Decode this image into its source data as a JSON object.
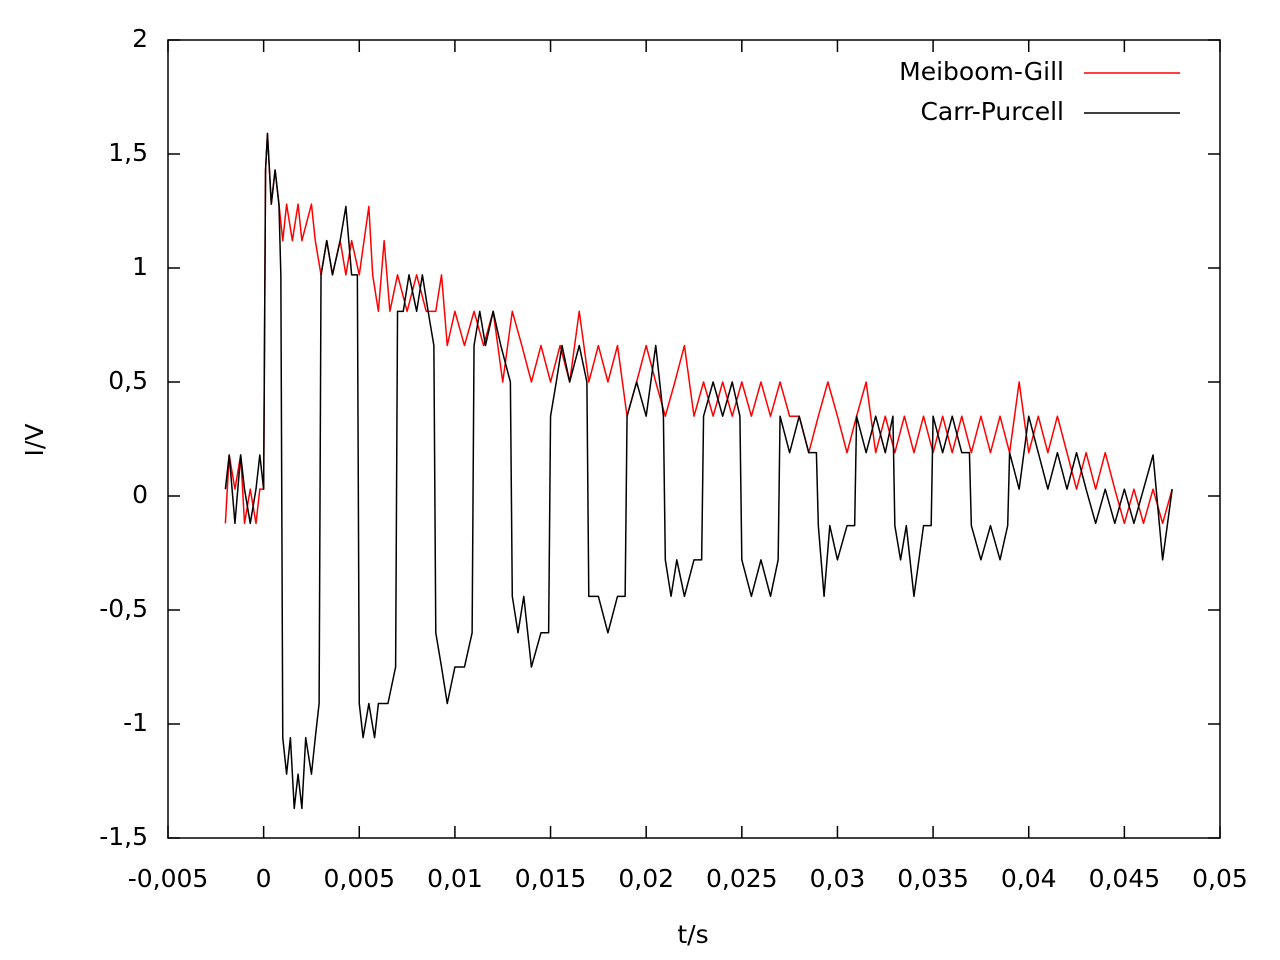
{
  "chart_data": {
    "type": "line",
    "xlabel": "t/s",
    "ylabel": "I/V",
    "xlim": [
      -0.005,
      0.05
    ],
    "xticks": [
      {
        "value": -0.005,
        "label": "-0,005"
      },
      0,
      {
        "value": 0.005,
        "label": "0,005"
      },
      {
        "value": 0.01,
        "label": "0,01"
      },
      {
        "value": 0.015,
        "label": "0,015"
      },
      {
        "value": 0.02,
        "label": "0,02"
      },
      {
        "value": 0.025,
        "label": "0,025"
      },
      {
        "value": 0.03,
        "label": "0,03"
      },
      {
        "value": 0.035,
        "label": "0,035"
      },
      {
        "value": 0.04,
        "label": "0,04"
      },
      {
        "value": 0.045,
        "label": "0,045"
      },
      {
        "value": 0.05,
        "label": "0,05"
      }
    ],
    "ylim": [
      -1.5,
      2
    ],
    "yticks": [
      {
        "value": -1.5,
        "label": "-1,5"
      },
      -1,
      {
        "value": -0.5,
        "label": "-0,5"
      },
      0,
      {
        "value": 0.5,
        "label": "0,5"
      },
      1,
      {
        "value": 1.5,
        "label": "1,5"
      },
      2
    ],
    "grid": false,
    "legend": "top-right",
    "series": [
      {
        "name": "Meiboom-Gill",
        "color": "#ff0000",
        "x": [
          -0.002,
          -0.0018,
          -0.0015,
          -0.0012,
          -0.001,
          -0.0007,
          -0.0004,
          -0.0002,
          0,
          0.0001,
          0.0002,
          0.0004,
          0.0006,
          0.0008,
          0.001,
          0.0012,
          0.0015,
          0.0018,
          0.002,
          0.0025,
          0.0027,
          0.003,
          0.0033,
          0.0036,
          0.004,
          0.0043,
          0.0046,
          0.005,
          0.0055,
          0.0057,
          0.006,
          0.0063,
          0.0066,
          0.007,
          0.0075,
          0.008,
          0.0085,
          0.009,
          0.0093,
          0.0096,
          0.01,
          0.0105,
          0.011,
          0.0115,
          0.012,
          0.0125,
          0.013,
          0.0135,
          0.014,
          0.0145,
          0.015,
          0.0155,
          0.016,
          0.0165,
          0.017,
          0.0175,
          0.018,
          0.0185,
          0.019,
          0.0195,
          0.02,
          0.0205,
          0.021,
          0.0215,
          0.022,
          0.0225,
          0.023,
          0.0235,
          0.024,
          0.0245,
          0.025,
          0.0255,
          0.026,
          0.0265,
          0.027,
          0.0275,
          0.028,
          0.0285,
          0.029,
          0.0295,
          0.03,
          0.0305,
          0.031,
          0.0315,
          0.032,
          0.0325,
          0.033,
          0.0335,
          0.034,
          0.0345,
          0.035,
          0.0355,
          0.036,
          0.0365,
          0.037,
          0.0375,
          0.038,
          0.0385,
          0.039,
          0.0395,
          0.04,
          0.0405,
          0.041,
          0.0415,
          0.042,
          0.0425,
          0.043,
          0.0435,
          0.044,
          0.0445,
          0.045,
          0.0455,
          0.046,
          0.0465,
          0.047,
          0.0475
        ],
        "values": [
          -0.12,
          0.18,
          0.03,
          0.18,
          -0.12,
          0.03,
          -0.12,
          0.03,
          0.03,
          1.43,
          1.59,
          1.28,
          1.43,
          1.28,
          1.12,
          1.28,
          1.12,
          1.28,
          1.12,
          1.28,
          1.12,
          0.97,
          1.12,
          0.97,
          1.12,
          0.97,
          1.12,
          0.97,
          1.27,
          0.97,
          0.81,
          1.12,
          0.81,
          0.97,
          0.81,
          0.97,
          0.81,
          0.81,
          0.97,
          0.66,
          0.81,
          0.66,
          0.81,
          0.66,
          0.81,
          0.5,
          0.81,
          0.66,
          0.5,
          0.66,
          0.5,
          0.66,
          0.5,
          0.81,
          0.5,
          0.66,
          0.5,
          0.66,
          0.35,
          0.5,
          0.66,
          0.5,
          0.35,
          0.5,
          0.66,
          0.35,
          0.5,
          0.35,
          0.5,
          0.35,
          0.5,
          0.35,
          0.5,
          0.35,
          0.5,
          0.35,
          0.35,
          0.19,
          0.35,
          0.5,
          0.35,
          0.19,
          0.35,
          0.5,
          0.19,
          0.35,
          0.19,
          0.35,
          0.19,
          0.35,
          0.19,
          0.35,
          0.19,
          0.35,
          0.19,
          0.35,
          0.19,
          0.35,
          0.19,
          0.5,
          0.19,
          0.35,
          0.19,
          0.35,
          0.19,
          0.03,
          0.19,
          0.03,
          0.19,
          0.03,
          -0.12,
          0.03,
          -0.12,
          0.03,
          -0.12,
          0.03
        ]
      },
      {
        "name": "Carr-Purcell",
        "color": "#000000",
        "x": [
          -0.002,
          -0.0018,
          -0.0015,
          -0.0012,
          -0.001,
          -0.0007,
          -0.0004,
          -0.0002,
          0,
          0.0001,
          0.0002,
          0.0004,
          0.0006,
          0.0008,
          0.0009,
          0.001,
          0.0012,
          0.0014,
          0.0016,
          0.0018,
          0.002,
          0.0022,
          0.0025,
          0.0027,
          0.0029,
          0.003,
          0.0033,
          0.0036,
          0.004,
          0.0043,
          0.0046,
          0.0049,
          0.005,
          0.0052,
          0.0055,
          0.0058,
          0.006,
          0.0065,
          0.0069,
          0.007,
          0.0073,
          0.0076,
          0.008,
          0.0083,
          0.0086,
          0.0089,
          0.009,
          0.0093,
          0.0096,
          0.01,
          0.0105,
          0.0109,
          0.011,
          0.0113,
          0.0116,
          0.012,
          0.0124,
          0.0129,
          0.013,
          0.0133,
          0.0136,
          0.014,
          0.0145,
          0.0149,
          0.015,
          0.0153,
          0.0156,
          0.016,
          0.0165,
          0.0169,
          0.017,
          0.0175,
          0.018,
          0.0185,
          0.0189,
          0.019,
          0.0195,
          0.02,
          0.0205,
          0.0209,
          0.021,
          0.0213,
          0.0216,
          0.022,
          0.0225,
          0.0229,
          0.023,
          0.0235,
          0.024,
          0.0245,
          0.0249,
          0.025,
          0.0255,
          0.026,
          0.0265,
          0.0269,
          0.027,
          0.0275,
          0.028,
          0.0285,
          0.0289,
          0.029,
          0.0293,
          0.0296,
          0.03,
          0.0305,
          0.0309,
          0.031,
          0.0315,
          0.032,
          0.0325,
          0.0329,
          0.033,
          0.0333,
          0.0336,
          0.034,
          0.0345,
          0.0349,
          0.035,
          0.0355,
          0.036,
          0.0365,
          0.0369,
          0.037,
          0.0375,
          0.038,
          0.0385,
          0.0389,
          0.039,
          0.0395,
          0.04,
          0.0405,
          0.041,
          0.0415,
          0.042,
          0.0425,
          0.043,
          0.0435,
          0.044,
          0.0445,
          0.045,
          0.0455,
          0.046,
          0.0465,
          0.047,
          0.0475
        ],
        "values": [
          0.03,
          0.18,
          -0.12,
          0.18,
          0.03,
          -0.12,
          0.03,
          0.18,
          0.03,
          1.43,
          1.59,
          1.28,
          1.43,
          1.28,
          0.97,
          -1.06,
          -1.22,
          -1.06,
          -1.37,
          -1.22,
          -1.37,
          -1.06,
          -1.22,
          -1.06,
          -0.91,
          0.97,
          1.12,
          0.97,
          1.12,
          1.27,
          0.97,
          0.97,
          -0.91,
          -1.06,
          -0.91,
          -1.06,
          -0.91,
          -0.91,
          -0.75,
          0.81,
          0.81,
          0.97,
          0.81,
          0.97,
          0.81,
          0.66,
          -0.6,
          -0.75,
          -0.91,
          -0.75,
          -0.75,
          -0.6,
          0.66,
          0.81,
          0.66,
          0.81,
          0.66,
          0.5,
          -0.44,
          -0.6,
          -0.44,
          -0.75,
          -0.6,
          -0.6,
          0.35,
          0.5,
          0.66,
          0.5,
          0.66,
          0.5,
          -0.44,
          -0.44,
          -0.6,
          -0.44,
          -0.44,
          0.35,
          0.5,
          0.35,
          0.66,
          0.35,
          -0.28,
          -0.44,
          -0.28,
          -0.44,
          -0.28,
          -0.28,
          0.35,
          0.5,
          0.35,
          0.5,
          0.35,
          -0.28,
          -0.44,
          -0.28,
          -0.44,
          -0.28,
          0.35,
          0.19,
          0.35,
          0.19,
          0.19,
          -0.13,
          -0.44,
          -0.13,
          -0.28,
          -0.13,
          -0.13,
          0.35,
          0.19,
          0.35,
          0.19,
          0.35,
          -0.13,
          -0.28,
          -0.13,
          -0.44,
          -0.13,
          -0.13,
          0.35,
          0.19,
          0.35,
          0.19,
          0.19,
          -0.13,
          -0.28,
          -0.13,
          -0.28,
          -0.13,
          0.19,
          0.03,
          0.35,
          0.19,
          0.03,
          0.19,
          0.03,
          0.19,
          0.03,
          -0.12,
          0.03,
          -0.12,
          0.03,
          -0.12,
          0.03,
          0.18,
          -0.28,
          0.03
        ]
      }
    ]
  }
}
